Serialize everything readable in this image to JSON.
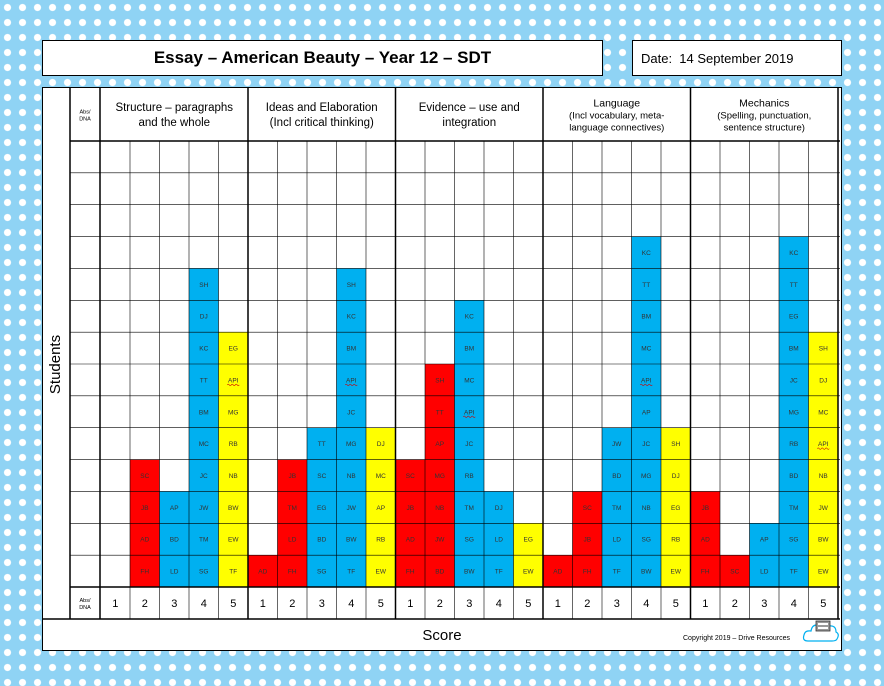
{
  "title": "Essay – American Beauty – Year 12 – SDT",
  "date": "Date:  14 September 2019",
  "y_axis_label": "Students",
  "x_axis_label": "Score",
  "absent_label": [
    "Abs/",
    "DNA"
  ],
  "score_labels": [
    "1",
    "2",
    "3",
    "4",
    "5"
  ],
  "copyright": "Copyright 2019 – Drive Resources",
  "colors": {
    "score1": "#ff0000",
    "score2": "#ff0000",
    "score3": "#00b0f0",
    "score4": "#00b0f0",
    "score5": "#ffff00",
    "background": "#8fd3f4"
  },
  "criteria": [
    {
      "title": [
        "Structure – paragraphs",
        "and the whole"
      ],
      "scores": [
        [],
        [
          "FH",
          "AD",
          "JB",
          "SC"
        ],
        [
          "LD",
          "BD",
          "AP"
        ],
        [
          "SG",
          "TM",
          "JW",
          "JC",
          "MC",
          "BM",
          "TT",
          "KC",
          "DJ",
          "SH"
        ],
        [
          "TF",
          "EW",
          "BW",
          "NB",
          "RB",
          "MG",
          "API",
          "EG"
        ]
      ]
    },
    {
      "title": [
        "Ideas and Elaboration",
        "(Incl critical thinking)"
      ],
      "scores": [
        [
          "AD"
        ],
        [
          "FH",
          "LD",
          "TM",
          "JB"
        ],
        [
          "SG",
          "BD",
          "EG",
          "SC",
          "TT"
        ],
        [
          "TF",
          "BW",
          "JW",
          "NB",
          "MG",
          "JC",
          "API",
          "BM",
          "KC",
          "SH"
        ],
        [
          "EW",
          "RB",
          "AP",
          "MC",
          "DJ"
        ]
      ]
    },
    {
      "title": [
        "Evidence – use and",
        "integration"
      ],
      "scores": [
        [
          "FH",
          "AD",
          "JB",
          "SC"
        ],
        [
          "BD",
          "JW",
          "NB",
          "MG",
          "AP",
          "TT",
          "SH"
        ],
        [
          "BW",
          "SG",
          "TM",
          "RB",
          "JC",
          "API",
          "MC",
          "BM",
          "KC"
        ],
        [
          "TF",
          "LD",
          "DJ"
        ],
        [
          "EW",
          "EG"
        ]
      ]
    },
    {
      "title": [
        "Language",
        "(Incl vocabulary, meta-",
        "language connectives)"
      ],
      "scores": [
        [
          "AD"
        ],
        [
          "FH",
          "JB",
          "SC"
        ],
        [
          "TF",
          "LD",
          "TM",
          "BD",
          "JW"
        ],
        [
          "BW",
          "SG",
          "NB",
          "MG",
          "JC",
          "AP",
          "API",
          "MC",
          "BM",
          "TT",
          "KC"
        ],
        [
          "EW",
          "RB",
          "EG",
          "DJ",
          "SH"
        ]
      ]
    },
    {
      "title": [
        "Mechanics",
        "(Spelling, punctuation,",
        "sentence structure)"
      ],
      "scores": [
        [
          "FH",
          "AD",
          "JB"
        ],
        [
          "SC"
        ],
        [
          "LD",
          "AP"
        ],
        [
          "TF",
          "SG",
          "TM",
          "BD",
          "RB",
          "MG",
          "JC",
          "BM",
          "EG",
          "TT",
          "KC"
        ],
        [
          "EW",
          "BW",
          "JW",
          "NB",
          "API",
          "MC",
          "DJ",
          "SH"
        ]
      ]
    }
  ]
}
